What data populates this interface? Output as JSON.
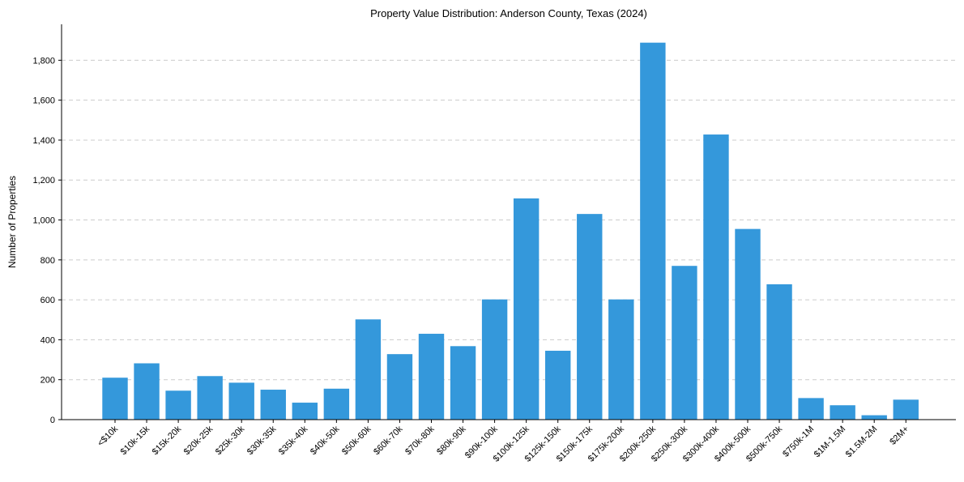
{
  "chart_data": {
    "type": "bar",
    "title": "Property Value Distribution: Anderson County, Texas (2024)",
    "xlabel": "",
    "ylabel": "Number of Properties",
    "ylim": [
      0,
      1980
    ],
    "yticks": [
      0,
      200,
      400,
      600,
      800,
      1000,
      1200,
      1400,
      1600,
      1800
    ],
    "ytick_labels": [
      "0",
      "200",
      "400",
      "600",
      "800",
      "1,000",
      "1,200",
      "1,400",
      "1,600",
      "1,800"
    ],
    "grid": "horizontal dashed",
    "bar_color": "#3498db",
    "categories": [
      "<$10k",
      "$10k-15k",
      "$15k-20k",
      "$20k-25k",
      "$25k-30k",
      "$30k-35k",
      "$35k-40k",
      "$40k-50k",
      "$50k-60k",
      "$60k-70k",
      "$70k-80k",
      "$80k-90k",
      "$90k-100k",
      "$100k-125k",
      "$125k-150k",
      "$150k-175k",
      "$175k-200k",
      "$200k-250k",
      "$250k-300k",
      "$300k-400k",
      "$400k-500k",
      "$500k-750k",
      "$750k-1M",
      "$1M-1.5M",
      "$1.5M-2M",
      "$2M+"
    ],
    "values": [
      210,
      282,
      145,
      218,
      185,
      150,
      85,
      155,
      502,
      328,
      430,
      368,
      602,
      1108,
      345,
      1030,
      602,
      1888,
      770,
      1428,
      955,
      678,
      108,
      72,
      22,
      100
    ]
  }
}
